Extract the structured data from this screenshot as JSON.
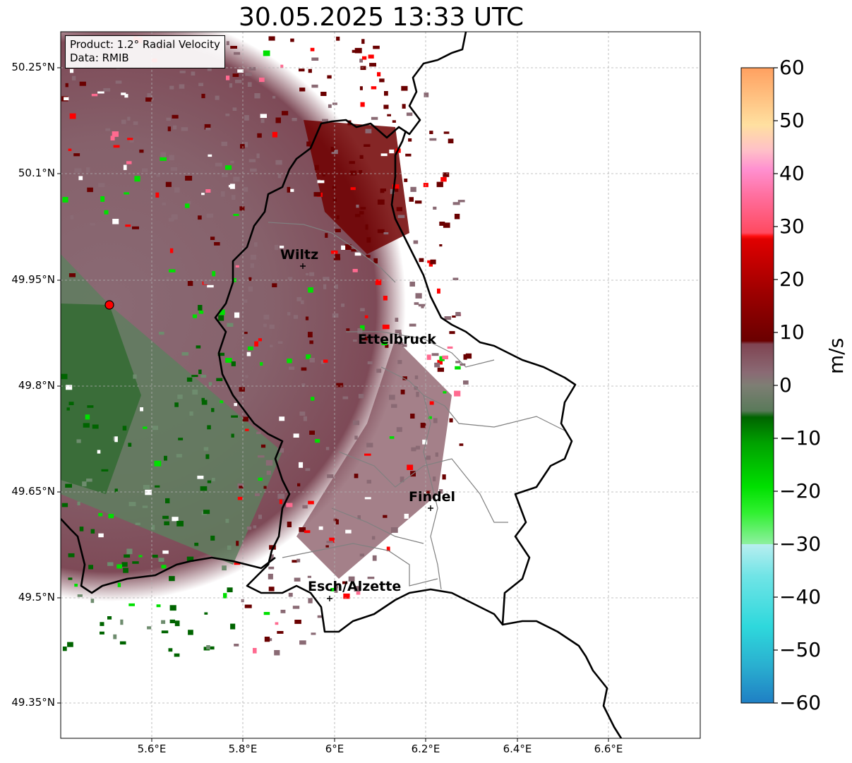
{
  "title": "30.05.2025 13:33 UTC",
  "info": {
    "product": "Product: 1.2° Radial Velocity",
    "data_source": "Data: RMIB"
  },
  "axes": {
    "y_ticks": [
      "50.25°N",
      "50.1°N",
      "49.95°N",
      "49.8°N",
      "49.65°N",
      "49.5°N",
      "49.35°N"
    ],
    "x_ticks": [
      "5.6°E",
      "5.8°E",
      "6°E",
      "6.2°E",
      "6.4°E",
      "6.6°E"
    ]
  },
  "colorbar": {
    "unit": "m/s",
    "min": -60,
    "max": 60,
    "tick_labels": [
      "60",
      "50",
      "40",
      "30",
      "20",
      "10",
      "0",
      "−10",
      "−20",
      "−30",
      "−40",
      "−50",
      "−60"
    ],
    "colors": {
      "deep_blue": "#1f7fc4",
      "cyan": "#2ed8dc",
      "light_cyan": "#b8eef0",
      "light_green": "#8ef0a0",
      "bright_green": "#00e000",
      "dark_green": "#006400",
      "gray_green": "#6e8c6e",
      "gray_mauve": "#8a6a74",
      "dark_red": "#6a0000",
      "red": "#ff0000",
      "pink": "#ff6a90",
      "light_pink": "#ffc0d0",
      "light_orange": "#ffd9a0",
      "orange": "#ffa060"
    }
  },
  "cities": [
    {
      "name": "Wiltz"
    },
    {
      "name": "Ettelbruck"
    },
    {
      "name": "Findel"
    },
    {
      "name": "Esch/Alzette"
    }
  ],
  "radar_site_color": "#ff0000"
}
